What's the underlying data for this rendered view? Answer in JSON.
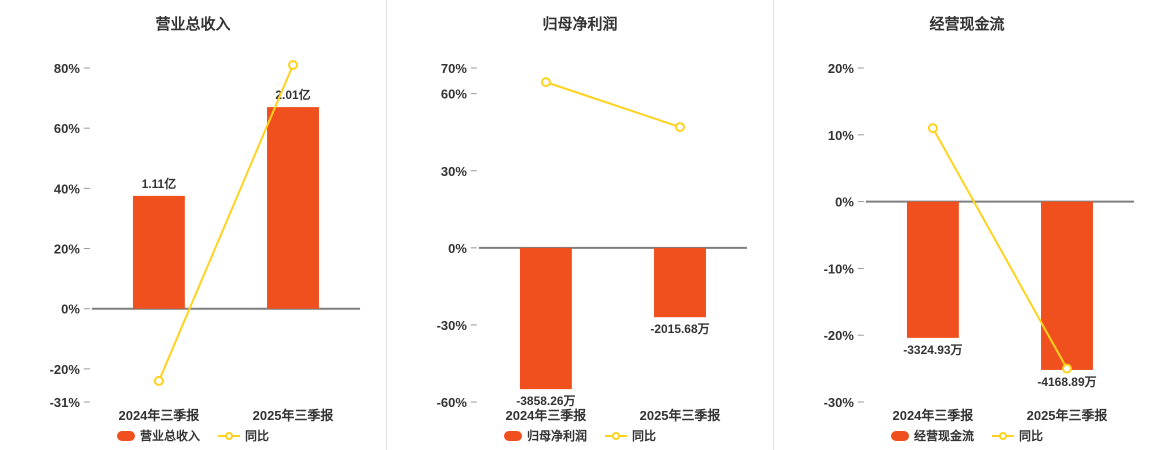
{
  "colors": {
    "bar": "#f0501e",
    "line": "#ffd21e",
    "marker_fill": "#ffffff",
    "text": "#333333",
    "zero_line": "#7f7f7f",
    "tick": "#999999",
    "divider": "#e4e4e4",
    "background": "#ffffff"
  },
  "chart_data": [
    {
      "type": "bar",
      "title": "营业总收入",
      "categories": [
        "2024年三季报",
        "2025年三季报"
      ],
      "bar_series": {
        "name": "营业总收入",
        "display_values": [
          "1.11亿",
          "2.01亿"
        ],
        "axis_values": [
          37.5,
          67
        ]
      },
      "line_series": {
        "name": "同比",
        "values": [
          -24,
          81
        ]
      },
      "y_ticks": [
        80,
        60,
        40,
        20,
        0,
        -20,
        -31
      ],
      "y_tick_suffix": "%",
      "ylim": [
        -31,
        80
      ],
      "grid": false,
      "legend_position": "bottom"
    },
    {
      "type": "bar",
      "title": "归母净利润",
      "categories": [
        "2024年三季报",
        "2025年三季报"
      ],
      "bar_series": {
        "name": "归母净利润",
        "display_values": [
          "-3858.26万",
          "-2015.68万"
        ],
        "axis_values": [
          -55,
          -27
        ]
      },
      "line_series": {
        "name": "同比",
        "values": [
          64.5,
          47
        ]
      },
      "y_ticks": [
        70,
        60,
        30,
        0,
        -30,
        -60
      ],
      "y_tick_suffix": "%",
      "ylim": [
        -60,
        70
      ],
      "grid": false,
      "legend_position": "bottom"
    },
    {
      "type": "bar",
      "title": "经营现金流",
      "categories": [
        "2024年三季报",
        "2025年三季报"
      ],
      "bar_series": {
        "name": "经营现金流",
        "display_values": [
          "-3324.93万",
          "-4168.89万"
        ],
        "axis_values": [
          -20.4,
          -25.2
        ]
      },
      "line_series": {
        "name": "同比",
        "values": [
          11,
          -25
        ]
      },
      "y_ticks": [
        20,
        10,
        0,
        -10,
        -20,
        -30
      ],
      "y_tick_suffix": "%",
      "ylim": [
        -30,
        20
      ],
      "grid": false,
      "legend_position": "bottom"
    }
  ]
}
